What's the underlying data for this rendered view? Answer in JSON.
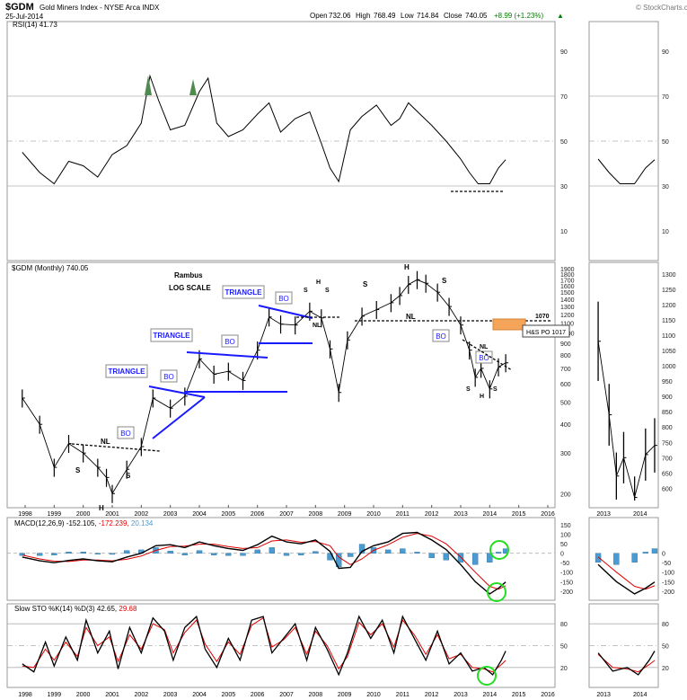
{
  "header": {
    "symbol": "$GDM",
    "name": "Gold Miners Index - NYSE Arca INDX",
    "date": "25-Jul-2014",
    "open_label": "Open",
    "open": "732.06",
    "high_label": "High",
    "high": "768.49",
    "low_label": "Low",
    "low": "714.84",
    "close_label": "Close",
    "close": "740.05",
    "change": "+8.99 (+1.23%)",
    "watermark": "© StockCharts.com"
  },
  "colors": {
    "price": "#000000",
    "pattern_lines": "#1a1aff",
    "signal_red": "#e00000",
    "histogram": "#4a9bd1",
    "circles": "#22dd22",
    "target_box": "#f5a55a",
    "rsi_fill": "#4f8a4f",
    "grid": "#c8c8c8"
  },
  "x_years_main": [
    "1998",
    "1999",
    "2000",
    "2001",
    "2002",
    "2003",
    "2004",
    "2005",
    "2006",
    "2007",
    "2008",
    "2009",
    "2010",
    "2011",
    "2012",
    "2013",
    "2014",
    "2015",
    "2016"
  ],
  "x_years_side": [
    "2013",
    "2014"
  ],
  "rsi_panel": {
    "label": "RSI(14) 41.73",
    "ticks": [
      "90",
      "70",
      "50",
      "30",
      "10"
    ]
  },
  "price_panel": {
    "label": "$GDM (Monthly) 740.05",
    "ticks": [
      "1900",
      "1800",
      "1700",
      "1600",
      "1500",
      "1400",
      "1300",
      "1200",
      "1100",
      "1000",
      "900",
      "800",
      "700",
      "600",
      "500",
      "400",
      "300",
      "200"
    ],
    "side_ticks": [
      "1300",
      "1250",
      "1200",
      "1150",
      "1100",
      "1050",
      "1000",
      "950",
      "900",
      "850",
      "800",
      "750",
      "700",
      "650",
      "600"
    ],
    "annotations": {
      "author": "Rambus",
      "scale": "LOG SCALE",
      "triangle": "TRIANGLE",
      "bo": "BO",
      "nl": "NL",
      "s": "S",
      "h": "H",
      "level": "1070",
      "target": "H&S PO 1017"
    }
  },
  "macd_panel": {
    "label_prefix": "MACD(12,26,9)",
    "macd": "-152.105,",
    "signal": "-172.239,",
    "hist": "20.134",
    "ticks": [
      "150",
      "100",
      "50",
      "0",
      "-50",
      "-100",
      "-150",
      "-200"
    ],
    "side_ticks": [
      "0",
      "-50",
      "-100",
      "-150",
      "-200"
    ]
  },
  "sto_panel": {
    "label_prefix": "Slow STO %K(14) %D(3)",
    "k": "42.65,",
    "d": "29.68",
    "ticks": [
      "80",
      "50",
      "20"
    ]
  },
  "chart_data": {
    "type": "line",
    "title": "$GDM Gold Miners Index - NYSE Arca INDX (Monthly, log scale)",
    "x_unit": "year",
    "price_close": {
      "x": [
        1997.9,
        1998.5,
        1999.0,
        1999.5,
        2000.0,
        2000.5,
        2000.8,
        2001.0,
        2001.5,
        2002.0,
        2002.4,
        2003.0,
        2003.5,
        2004.0,
        2004.5,
        2005.0,
        2005.5,
        2006.0,
        2006.4,
        2006.8,
        2007.3,
        2007.8,
        2008.2,
        2008.5,
        2008.8,
        2009.1,
        2009.6,
        2010.1,
        2010.6,
        2010.9,
        2011.2,
        2011.5,
        2011.8,
        2012.2,
        2012.6,
        2013.0,
        2013.3,
        2013.5,
        2013.7,
        2014.0,
        2014.3,
        2014.55
      ],
      "y": [
        520,
        400,
        260,
        330,
        300,
        260,
        235,
        200,
        255,
        320,
        520,
        470,
        530,
        770,
        660,
        680,
        620,
        840,
        1170,
        1090,
        1080,
        1240,
        1160,
        850,
        550,
        930,
        1180,
        1260,
        1350,
        1450,
        1620,
        1700,
        1640,
        1500,
        1300,
        1080,
        840,
        640,
        700,
        570,
        710,
        740
      ],
      "ylim": [
        180,
        1950
      ]
    },
    "rsi": {
      "x": [
        1997.9,
        1998.5,
        1999.0,
        1999.5,
        2000.0,
        2000.5,
        2001.0,
        2001.5,
        2002.0,
        2002.3,
        2002.6,
        2003.0,
        2003.5,
        2004.0,
        2004.3,
        2004.6,
        2005.0,
        2005.5,
        2006.0,
        2006.4,
        2006.8,
        2007.3,
        2007.8,
        2008.2,
        2008.5,
        2008.8,
        2009.2,
        2009.6,
        2010.1,
        2010.6,
        2010.9,
        2011.2,
        2011.6,
        2012.0,
        2012.5,
        2013.0,
        2013.3,
        2013.6,
        2014.0,
        2014.3,
        2014.55
      ],
      "y": [
        45,
        36,
        31,
        41,
        39,
        34,
        44,
        48,
        58,
        79,
        68,
        55,
        57,
        72,
        78,
        58,
        52,
        55,
        62,
        67,
        54,
        60,
        63,
        49,
        38,
        32,
        55,
        61,
        66,
        57,
        60,
        67,
        62,
        57,
        50,
        42,
        36,
        31,
        31,
        38,
        41.73
      ],
      "ylim": [
        0,
        100
      ]
    },
    "macd": {
      "x": [
        1997.9,
        1998.5,
        1999.0,
        1999.5,
        2000.0,
        2000.5,
        2001.0,
        2001.5,
        2002.0,
        2002.5,
        2003.0,
        2003.5,
        2004.0,
        2004.5,
        2005.0,
        2005.5,
        2006.0,
        2006.5,
        2007.0,
        2007.5,
        2008.0,
        2008.5,
        2008.8,
        2009.2,
        2009.6,
        2010.0,
        2010.5,
        2011.0,
        2011.5,
        2012.0,
        2012.5,
        2013.0,
        2013.5,
        2014.0,
        2014.3,
        2014.55
      ],
      "y": [
        -20,
        -40,
        -50,
        -38,
        -30,
        -40,
        -45,
        -20,
        0,
        40,
        45,
        30,
        60,
        40,
        25,
        15,
        45,
        90,
        60,
        50,
        70,
        10,
        -80,
        -75,
        10,
        40,
        60,
        105,
        110,
        70,
        20,
        -60,
        -150,
        -215,
        -185,
        -152.105
      ],
      "signal": [
        -10,
        -30,
        -42,
        -44,
        -36,
        -36,
        -40,
        -32,
        -15,
        15,
        35,
        38,
        48,
        48,
        35,
        25,
        30,
        65,
        70,
        58,
        62,
        40,
        -20,
        -60,
        -30,
        15,
        45,
        85,
        105,
        90,
        50,
        -20,
        -100,
        -175,
        -190,
        -172.239
      ],
      "ylim": [
        -220,
        160
      ]
    },
    "stochastics": {
      "x": [
        1997.9,
        1998.3,
        1998.7,
        1999.0,
        1999.4,
        1999.8,
        2000.1,
        2000.5,
        2000.9,
        2001.2,
        2001.6,
        2002.0,
        2002.4,
        2002.8,
        2003.1,
        2003.5,
        2003.9,
        2004.2,
        2004.6,
        2005.0,
        2005.4,
        2005.8,
        2006.2,
        2006.5,
        2006.9,
        2007.3,
        2007.7,
        2008.0,
        2008.4,
        2008.8,
        2009.1,
        2009.5,
        2009.9,
        2010.3,
        2010.7,
        2011.0,
        2011.4,
        2011.8,
        2012.2,
        2012.6,
        2013.0,
        2013.4,
        2013.8,
        2014.1,
        2014.4,
        2014.55
      ],
      "k": [
        25,
        14,
        55,
        22,
        62,
        30,
        85,
        40,
        70,
        18,
        75,
        40,
        88,
        70,
        30,
        75,
        90,
        45,
        20,
        60,
        30,
        85,
        90,
        40,
        60,
        80,
        30,
        75,
        45,
        10,
        40,
        90,
        60,
        85,
        40,
        90,
        60,
        30,
        70,
        25,
        40,
        15,
        20,
        10,
        30,
        42.65
      ],
      "d": [
        22,
        20,
        45,
        30,
        55,
        35,
        75,
        50,
        62,
        28,
        65,
        45,
        80,
        72,
        40,
        68,
        85,
        52,
        28,
        55,
        38,
        78,
        88,
        48,
        58,
        75,
        38,
        70,
        50,
        18,
        35,
        82,
        65,
        80,
        48,
        85,
        65,
        38,
        65,
        32,
        38,
        20,
        18,
        14,
        24,
        29.68
      ],
      "ylim": [
        0,
        100
      ]
    }
  }
}
